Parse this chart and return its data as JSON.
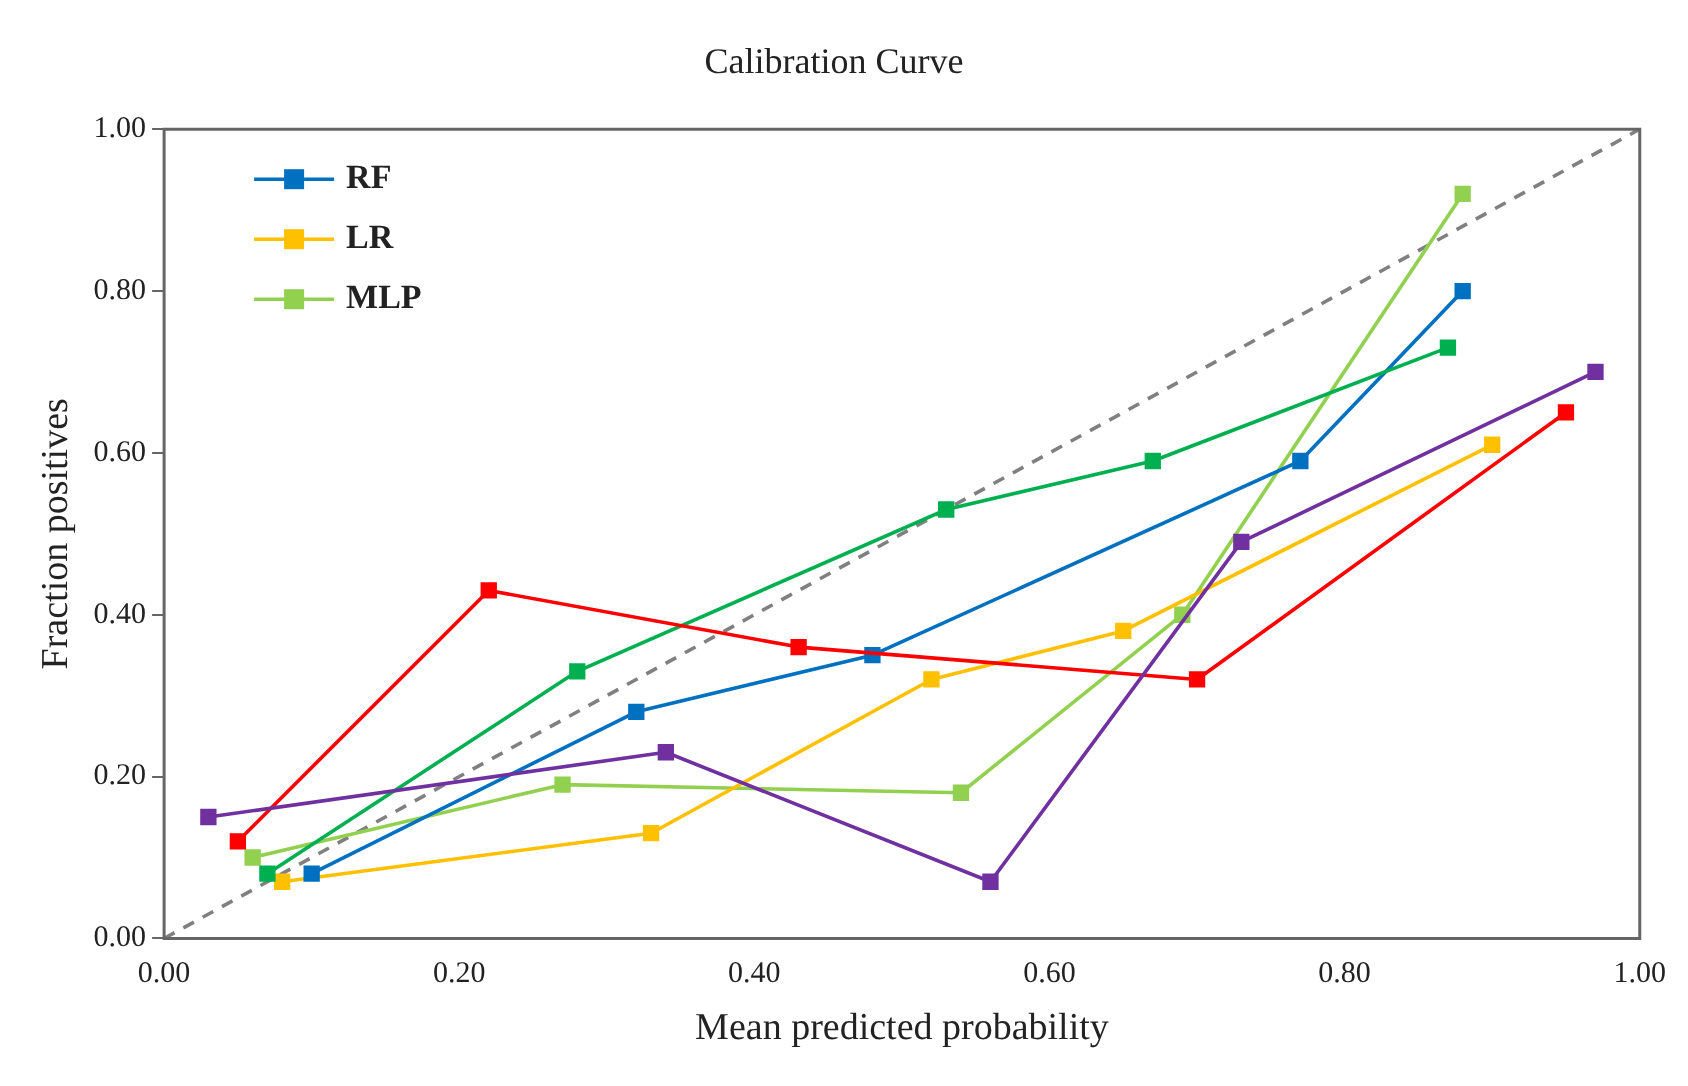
{
  "chart_data": {
    "type": "line",
    "title": "Calibration Curve",
    "xlabel": "Mean predicted probability",
    "ylabel": "Fraction positives",
    "xlim": [
      0,
      1
    ],
    "ylim": [
      0,
      1
    ],
    "xticks": [
      {
        "value": 0,
        "label": "0.00"
      },
      {
        "value": 0.2,
        "label": "0.20"
      },
      {
        "value": 0.4,
        "label": "0.40"
      },
      {
        "value": 0.6,
        "label": "0.60"
      },
      {
        "value": 0.8,
        "label": "0.80"
      },
      {
        "value": 1,
        "label": "1.00"
      }
    ],
    "yticks": [
      {
        "value": 0,
        "label": "0.00"
      },
      {
        "value": 0.2,
        "label": "0.20"
      },
      {
        "value": 0.4,
        "label": "0.40"
      },
      {
        "value": 0.6,
        "label": "0.60"
      },
      {
        "value": 0.8,
        "label": "0.80"
      },
      {
        "value": 1,
        "label": "1.00"
      }
    ],
    "grid": false,
    "legend": "top left",
    "marker": "square",
    "series": [
      {
        "color": "#7030a0",
        "x": [
          0.03,
          0.34,
          0.56,
          0.73,
          0.97
        ],
        "values": [
          0.15,
          0.23,
          0.07,
          0.49,
          0.7
        ]
      },
      {
        "color": "#ff0000",
        "x": [
          0.05,
          0.22,
          0.43,
          0.7,
          0.95
        ],
        "values": [
          0.12,
          0.43,
          0.36,
          0.32,
          0.65
        ]
      },
      {
        "color": "#00b050",
        "x": [
          0.07,
          0.28,
          0.53,
          0.67,
          0.87
        ],
        "values": [
          0.08,
          0.33,
          0.53,
          0.59,
          0.73
        ]
      },
      {
        "name": "RF",
        "color": "#0070c0",
        "x": [
          0.1,
          0.32,
          0.48,
          0.77,
          0.88
        ],
        "values": [
          0.08,
          0.28,
          0.35,
          0.59,
          0.8
        ]
      },
      {
        "name": "LR",
        "color": "#ffc000",
        "x": [
          0.08,
          0.33,
          0.52,
          0.65,
          0.9
        ],
        "values": [
          0.07,
          0.13,
          0.32,
          0.38,
          0.61
        ]
      },
      {
        "name": "MLP",
        "color": "#92d050",
        "x": [
          0.06,
          0.27,
          0.54,
          0.69,
          0.88
        ],
        "values": [
          0.1,
          0.19,
          0.18,
          0.4,
          0.92
        ]
      },
      {
        "color": "#808080",
        "x": [
          0,
          1
        ],
        "values": [
          0,
          1
        ],
        "marker": "none",
        "line_style": "dashed"
      }
    ]
  }
}
